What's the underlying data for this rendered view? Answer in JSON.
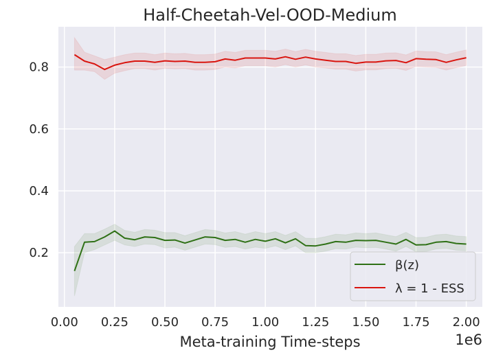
{
  "chart_data": {
    "type": "line",
    "title": "Half-Cheetah-Vel-OOD-Medium",
    "xlabel": "Meta-training Time-steps",
    "ylabel": "",
    "x_scale_label": "1e6",
    "xlim": [
      -0.03,
      2.08
    ],
    "ylim": [
      0.025,
      0.93
    ],
    "xticks": [
      0.0,
      0.25,
      0.5,
      0.75,
      1.0,
      1.25,
      1.5,
      1.75,
      2.0
    ],
    "xtick_labels": [
      "0.00",
      "0.25",
      "0.50",
      "0.75",
      "1.00",
      "1.25",
      "1.50",
      "1.75",
      "2.00"
    ],
    "yticks": [
      0.2,
      0.4,
      0.6,
      0.8
    ],
    "ytick_labels": [
      "0.2",
      "0.4",
      "0.6",
      "0.8"
    ],
    "grid": true,
    "legend_position": "bottom-right",
    "x": [
      0.05,
      0.1,
      0.15,
      0.2,
      0.25,
      0.3,
      0.35,
      0.4,
      0.45,
      0.5,
      0.55,
      0.6,
      0.65,
      0.7,
      0.75,
      0.8,
      0.85,
      0.9,
      0.95,
      1.0,
      1.05,
      1.1,
      1.15,
      1.2,
      1.25,
      1.3,
      1.35,
      1.4,
      1.45,
      1.5,
      1.55,
      1.6,
      1.65,
      1.7,
      1.75,
      1.8,
      1.85,
      1.9,
      1.95,
      2.0
    ],
    "series": [
      {
        "name": "β(z)",
        "color": "#2e7015",
        "values": [
          0.141,
          0.234,
          0.236,
          0.251,
          0.27,
          0.247,
          0.242,
          0.251,
          0.249,
          0.24,
          0.241,
          0.231,
          0.241,
          0.251,
          0.249,
          0.24,
          0.243,
          0.234,
          0.243,
          0.237,
          0.245,
          0.232,
          0.245,
          0.223,
          0.222,
          0.228,
          0.236,
          0.234,
          0.24,
          0.239,
          0.24,
          0.234,
          0.228,
          0.243,
          0.225,
          0.226,
          0.234,
          0.236,
          0.23,
          0.228
        ],
        "lower": [
          0.06,
          0.2,
          0.21,
          0.225,
          0.24,
          0.225,
          0.22,
          0.228,
          0.226,
          0.215,
          0.218,
          0.208,
          0.218,
          0.228,
          0.226,
          0.217,
          0.22,
          0.212,
          0.218,
          0.214,
          0.222,
          0.21,
          0.222,
          0.2,
          0.2,
          0.205,
          0.213,
          0.212,
          0.218,
          0.216,
          0.217,
          0.212,
          0.205,
          0.22,
          0.203,
          0.204,
          0.212,
          0.214,
          0.208,
          0.206
        ],
        "upper": [
          0.22,
          0.262,
          0.262,
          0.276,
          0.292,
          0.272,
          0.266,
          0.275,
          0.273,
          0.265,
          0.265,
          0.255,
          0.265,
          0.275,
          0.272,
          0.264,
          0.268,
          0.26,
          0.268,
          0.262,
          0.268,
          0.256,
          0.268,
          0.247,
          0.246,
          0.252,
          0.26,
          0.258,
          0.264,
          0.262,
          0.264,
          0.258,
          0.252,
          0.266,
          0.249,
          0.25,
          0.258,
          0.26,
          0.254,
          0.252
        ]
      },
      {
        "name": "λ = 1 - ESS",
        "color": "#d9140e",
        "values": [
          0.84,
          0.819,
          0.81,
          0.792,
          0.806,
          0.814,
          0.819,
          0.819,
          0.815,
          0.82,
          0.818,
          0.819,
          0.815,
          0.815,
          0.817,
          0.826,
          0.822,
          0.829,
          0.829,
          0.829,
          0.826,
          0.833,
          0.825,
          0.832,
          0.826,
          0.822,
          0.818,
          0.818,
          0.812,
          0.816,
          0.816,
          0.82,
          0.821,
          0.814,
          0.827,
          0.825,
          0.824,
          0.815,
          0.823,
          0.83
        ],
        "lower": [
          0.79,
          0.79,
          0.785,
          0.76,
          0.78,
          0.788,
          0.795,
          0.795,
          0.79,
          0.796,
          0.794,
          0.795,
          0.79,
          0.79,
          0.792,
          0.8,
          0.797,
          0.804,
          0.804,
          0.804,
          0.8,
          0.808,
          0.8,
          0.807,
          0.8,
          0.797,
          0.793,
          0.793,
          0.787,
          0.791,
          0.791,
          0.795,
          0.796,
          0.789,
          0.802,
          0.8,
          0.799,
          0.79,
          0.798,
          0.805
        ],
        "upper": [
          0.895,
          0.848,
          0.836,
          0.824,
          0.832,
          0.84,
          0.845,
          0.845,
          0.84,
          0.845,
          0.843,
          0.844,
          0.84,
          0.84,
          0.842,
          0.851,
          0.847,
          0.854,
          0.854,
          0.854,
          0.851,
          0.858,
          0.85,
          0.857,
          0.851,
          0.847,
          0.843,
          0.843,
          0.837,
          0.841,
          0.841,
          0.845,
          0.846,
          0.839,
          0.852,
          0.85,
          0.849,
          0.84,
          0.848,
          0.855
        ]
      }
    ]
  }
}
